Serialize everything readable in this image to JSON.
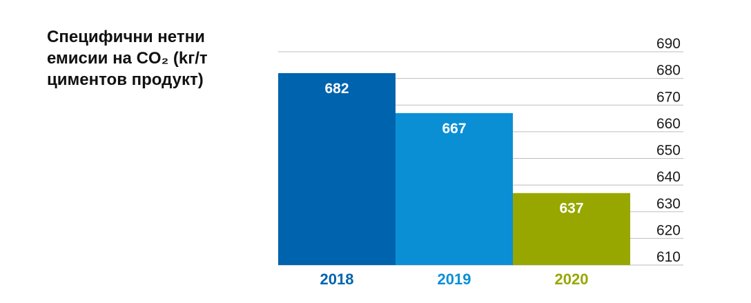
{
  "title_lines": [
    "Специфични нетни",
    "емисии на CO₂ (kг/т",
    "циментов продукт)"
  ],
  "chart_data": {
    "type": "bar",
    "categories": [
      "2018",
      "2019",
      "2020"
    ],
    "values": [
      682,
      667,
      637
    ],
    "bar_colors": [
      "#0063ae",
      "#0a8fd5",
      "#97a700"
    ],
    "category_label_colors": [
      "#0063ae",
      "#0a8fd5",
      "#97a700"
    ],
    "data_label_color": "#ffffff",
    "gridline_color": "#bdbdbd",
    "ylim": [
      610,
      690
    ],
    "yticks": [
      690,
      680,
      670,
      660,
      650,
      640,
      630,
      620,
      610
    ],
    "yaxis_position": "right",
    "grid": true,
    "legend": "none"
  }
}
